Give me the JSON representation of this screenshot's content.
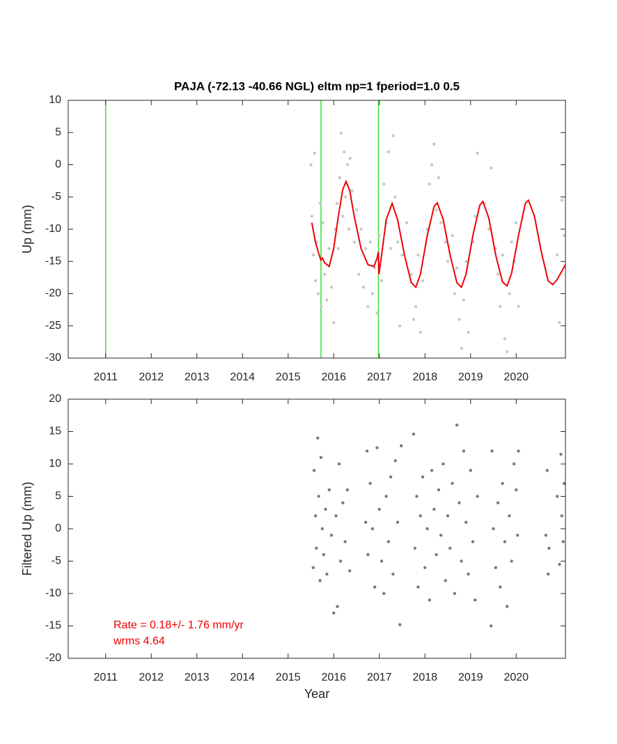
{
  "chart_data": [
    {
      "type": "scatter",
      "title": "PAJA (-72.13 -40.66 NGL) eltm np=1 fperiod=1.0 0.5",
      "ylabel": "Up (mm)",
      "xlim": [
        2010.18,
        2021.08
      ],
      "ylim": [
        -30,
        10
      ],
      "xticks": [
        2011,
        2012,
        2013,
        2014,
        2015,
        2016,
        2017,
        2018,
        2019,
        2020
      ],
      "yticks": [
        -30,
        -25,
        -20,
        -15,
        -10,
        -5,
        0,
        5,
        10
      ],
      "vlines": {
        "color": "#33e033",
        "values": [
          2011.0,
          2015.72,
          2016.98
        ]
      },
      "series": [
        {
          "mode": "markers",
          "color": "#c8c8c8",
          "x": [
            2015.5,
            2015.52,
            2015.55,
            2015.58,
            2015.6,
            2015.63,
            2015.66,
            2015.7,
            2015.73,
            2015.76,
            2015.8,
            2015.85,
            2015.9,
            2015.95,
            2016.0,
            2016.03,
            2016.07,
            2016.1,
            2016.13,
            2016.16,
            2016.2,
            2016.23,
            2016.26,
            2016.3,
            2016.33,
            2016.36,
            2016.4,
            2016.45,
            2016.5,
            2016.55,
            2016.6,
            2016.65,
            2016.7,
            2016.75,
            2016.8,
            2016.85,
            2016.9,
            2016.95,
            2017.0,
            2017.05,
            2017.1,
            2017.15,
            2017.2,
            2017.25,
            2017.3,
            2017.35,
            2017.4,
            2017.45,
            2017.5,
            2017.6,
            2017.7,
            2017.75,
            2017.8,
            2017.85,
            2017.9,
            2017.95,
            2018.05,
            2018.1,
            2018.15,
            2018.2,
            2018.25,
            2018.3,
            2018.35,
            2018.45,
            2018.5,
            2018.6,
            2018.65,
            2018.7,
            2018.75,
            2018.8,
            2018.85,
            2018.9,
            2018.95,
            2019.05,
            2019.1,
            2019.15,
            2019.3,
            2019.4,
            2019.45,
            2019.55,
            2019.6,
            2019.65,
            2019.7,
            2019.75,
            2019.8,
            2019.85,
            2019.9,
            2019.95,
            2020.0,
            2020.05,
            2020.9,
            2020.95,
            2021.0,
            2021.05
          ],
          "values": [
            0,
            -8,
            -14,
            1.8,
            -18,
            -12,
            -20,
            -6,
            -22,
            -9,
            -17,
            -21,
            -13,
            -19,
            -24.5,
            -10,
            -6,
            -13,
            -2,
            4.9,
            -8,
            2,
            -5,
            0,
            -10,
            1,
            -4,
            -12,
            -7,
            -17,
            -10,
            -19,
            -13,
            -22,
            -12,
            -20,
            -16,
            -23,
            -11,
            -18,
            -3,
            -9,
            2,
            -13,
            4.5,
            -5,
            -12,
            -25,
            -14,
            -9,
            -17,
            -24,
            -22,
            -14,
            -26,
            -18,
            -10,
            -3,
            0,
            3.2,
            -7,
            -2,
            -9,
            -12,
            -15,
            -11,
            -20,
            -16,
            -24,
            -28.5,
            -21,
            -15,
            -26,
            -12,
            -8,
            1.8,
            -6,
            -10,
            -0.5,
            -13,
            -17,
            -22,
            -14,
            -27,
            -29,
            -20,
            -12,
            -15,
            -9,
            -22,
            -14,
            -24.5,
            -5.5,
            -11
          ]
        },
        {
          "mode": "line",
          "color": "#ee0000",
          "x": [
            2015.52,
            2015.6,
            2015.68,
            2015.72,
            2015.75,
            2015.8,
            2015.9,
            2016.0,
            2016.1,
            2016.2,
            2016.27,
            2016.35,
            2016.45,
            2016.6,
            2016.75,
            2016.88,
            2016.95,
            2016.98,
            2016.99,
            2017.05,
            2017.15,
            2017.28,
            2017.4,
            2017.55,
            2017.7,
            2017.8,
            2017.9,
            2018.05,
            2018.2,
            2018.27,
            2018.4,
            2018.55,
            2018.7,
            2018.8,
            2018.9,
            2019.05,
            2019.2,
            2019.27,
            2019.4,
            2019.55,
            2019.7,
            2019.8,
            2019.9,
            2020.05,
            2020.2,
            2020.27,
            2020.4,
            2020.55,
            2020.7,
            2020.8,
            2020.9,
            2021.08
          ],
          "values": [
            -9,
            -12,
            -14,
            -14.8,
            -14.5,
            -15.2,
            -15.8,
            -13,
            -8,
            -3.8,
            -2.6,
            -4,
            -8,
            -13,
            -15.5,
            -15.8,
            -14.5,
            -13.5,
            -17,
            -14,
            -8.5,
            -6,
            -8.5,
            -14,
            -18.3,
            -19,
            -17,
            -11,
            -6.5,
            -5.9,
            -8.5,
            -14,
            -18.3,
            -19,
            -17,
            -11,
            -6.3,
            -5.7,
            -8.3,
            -14,
            -18.2,
            -18.8,
            -16.8,
            -11,
            -6,
            -5.5,
            -8,
            -13.5,
            -18,
            -18.6,
            -17.8,
            -15.5
          ]
        }
      ]
    },
    {
      "type": "scatter",
      "ylabel": "Filtered Up (mm)",
      "xlabel": "Year",
      "xlim": [
        2010.18,
        2021.08
      ],
      "ylim": [
        -20,
        20
      ],
      "xticks": [
        2011,
        2012,
        2013,
        2014,
        2015,
        2016,
        2017,
        2018,
        2019,
        2020
      ],
      "yticks": [
        -20,
        -15,
        -10,
        -5,
        0,
        5,
        10,
        15,
        20
      ],
      "annotation_color": "#ee0000",
      "annotations": [
        "Rate = 0.18+/- 1.76 mm/yr",
        "wrms 4.64"
      ],
      "series": [
        {
          "mode": "markers",
          "color": "#7a7a7a",
          "x": [
            2015.55,
            2015.57,
            2015.6,
            2015.62,
            2015.65,
            2015.67,
            2015.7,
            2015.72,
            2015.75,
            2015.78,
            2015.82,
            2015.85,
            2015.9,
            2015.95,
            2016.0,
            2016.05,
            2016.08,
            2016.12,
            2016.15,
            2016.2,
            2016.25,
            2016.3,
            2016.35,
            2016.7,
            2016.73,
            2016.75,
            2016.8,
            2016.85,
            2016.9,
            2016.95,
            2017.0,
            2017.05,
            2017.1,
            2017.15,
            2017.2,
            2017.25,
            2017.3,
            2017.35,
            2017.4,
            2017.45,
            2017.48,
            2017.75,
            2017.78,
            2017.82,
            2017.85,
            2017.9,
            2017.95,
            2018.0,
            2018.05,
            2018.1,
            2018.15,
            2018.2,
            2018.25,
            2018.3,
            2018.35,
            2018.4,
            2018.45,
            2018.5,
            2018.55,
            2018.6,
            2018.65,
            2018.7,
            2018.75,
            2018.8,
            2018.85,
            2018.9,
            2018.95,
            2019.0,
            2019.05,
            2019.1,
            2019.15,
            2019.45,
            2019.47,
            2019.5,
            2019.55,
            2019.6,
            2019.65,
            2019.7,
            2019.75,
            2019.8,
            2019.85,
            2019.9,
            2019.95,
            2020.0,
            2020.03,
            2020.05,
            2020.65,
            2020.68,
            2020.7,
            2020.72,
            2020.9,
            2020.95,
            2020.98,
            2021.0,
            2021.03,
            2021.05
          ],
          "values": [
            -6,
            9,
            2,
            -3,
            14,
            5,
            -8,
            11,
            0,
            -4,
            3,
            -7,
            6,
            -1,
            -13,
            2,
            -12,
            10,
            -5,
            4,
            -2,
            6,
            -6.5,
            1,
            12,
            -4,
            7,
            0,
            -9,
            12.5,
            3,
            -5,
            -10,
            5,
            -2,
            8,
            -7,
            10.5,
            1,
            -14.8,
            12.8,
            14.6,
            -3,
            5,
            -9,
            2,
            8,
            -6,
            0,
            -11,
            9,
            3,
            -4,
            6,
            -1,
            10,
            -8,
            2,
            -3,
            7,
            -10,
            16,
            4,
            -5,
            12,
            1,
            -7,
            9,
            -2,
            -11,
            5,
            -15,
            12,
            0,
            -6,
            4,
            -9,
            7,
            -2,
            -12,
            2,
            -5,
            10,
            6,
            -1,
            12,
            -1,
            9,
            -7,
            -3,
            5,
            -5.5,
            11.5,
            2,
            -2,
            7
          ]
        }
      ]
    }
  ]
}
